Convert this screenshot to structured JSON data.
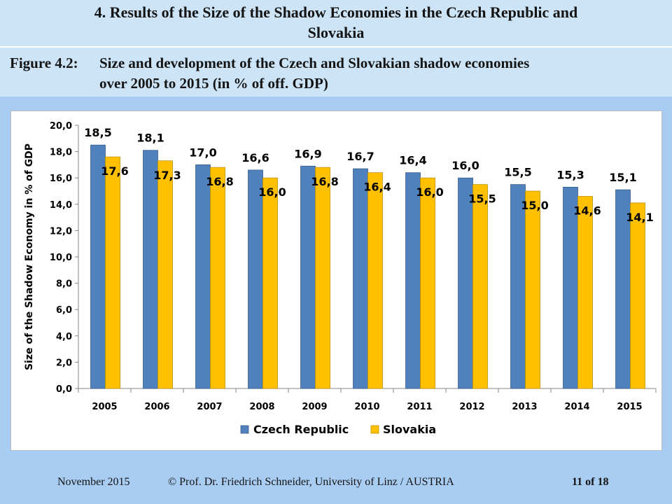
{
  "slide": {
    "header_title": "4. Results of the Size of the Shadow Economies in the Czech Republic and",
    "header_title_line2": "Slovakia",
    "figure_label": "Figure 4.2:",
    "figure_title_line1": "Size and development of the Czech and Slovakian shadow economies",
    "figure_title_line2": "over 2005 to 2015 (in % of off. GDP)"
  },
  "footer": {
    "date": "November 2015",
    "author": "© Prof. Dr. Friedrich Schneider, University of Linz / AUSTRIA",
    "page": "11 of 18"
  },
  "chart_data": {
    "type": "bar",
    "categories": [
      "2005",
      "2006",
      "2007",
      "2008",
      "2009",
      "2010",
      "2011",
      "2012",
      "2013",
      "2014",
      "2015"
    ],
    "series": [
      {
        "name": "Czech Republic",
        "values": [
          18.5,
          18.1,
          17.0,
          16.6,
          16.9,
          16.7,
          16.4,
          16.0,
          15.5,
          15.3,
          15.1
        ],
        "labels": [
          "18,5",
          "18,1",
          "17,0",
          "16,6",
          "16,9",
          "16,7",
          "16,4",
          "16,0",
          "15,5",
          "15,3",
          "15,1"
        ],
        "color": "#4f81bd"
      },
      {
        "name": "Slovakia",
        "values": [
          17.6,
          17.3,
          16.8,
          16.0,
          16.8,
          16.4,
          16.0,
          15.5,
          15.0,
          14.6,
          14.1
        ],
        "labels": [
          "17,6",
          "17,3",
          "16,8",
          "16,0",
          "16,8",
          "16,4",
          "16,0",
          "15,5",
          "15,0",
          "14,6",
          "14,1"
        ],
        "color": "#ffc000"
      }
    ],
    "ylabel": "Size of the Shadow Economy in % of GDP",
    "ylim": [
      0,
      20
    ],
    "yticks": [
      "0,0",
      "2,0",
      "4,0",
      "6,0",
      "8,0",
      "10,0",
      "12,0",
      "14,0",
      "16,0",
      "18,0",
      "20,0"
    ],
    "legend_position": "bottom",
    "grid": false
  }
}
